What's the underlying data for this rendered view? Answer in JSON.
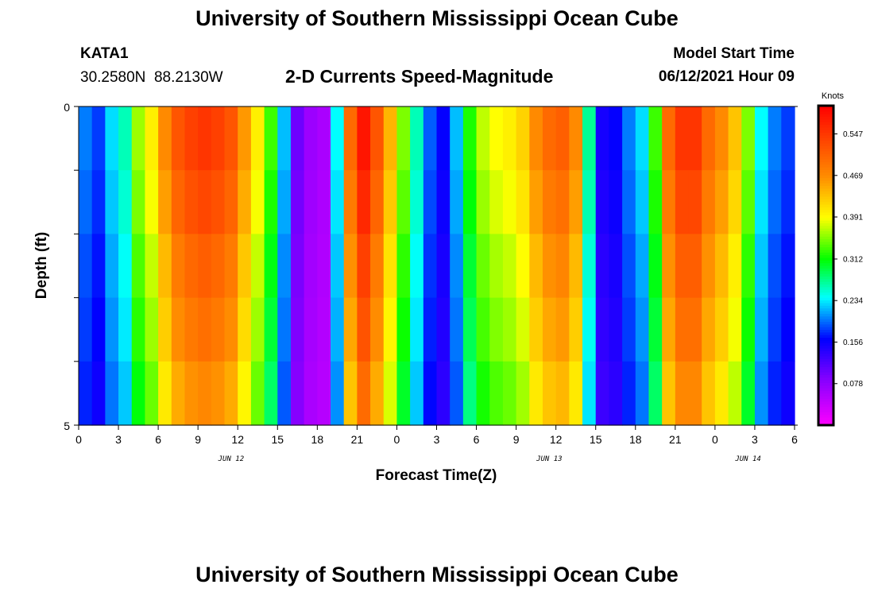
{
  "page": {
    "title": "University of Southern Mississippi Ocean Cube",
    "footer_title": "University of Southern Mississippi Ocean Cube",
    "station_id": "KATA1",
    "coords": "30.2580N  88.2130W",
    "subtitle": "2-D Currents Speed-Magnitude",
    "model_start_label": "Model Start Time",
    "model_start_value": "06/12/2021 Hour 09"
  },
  "chart_data": {
    "type": "heatmap",
    "title": "2-D Currents Speed-Magnitude",
    "xlabel": "Forecast Time(Z)",
    "ylabel": "Depth (ft)",
    "ylim": [
      0,
      5
    ],
    "y_ticks": [
      "0",
      "5"
    ],
    "x_tick_labels": [
      "0",
      "3",
      "6",
      "9",
      "12",
      "15",
      "18",
      "21",
      "0",
      "3",
      "6",
      "9",
      "12",
      "15",
      "18",
      "21",
      "0",
      "3",
      "6"
    ],
    "date_labels": [
      {
        "text": "JUN 12",
        "at_hours": 11.5
      },
      {
        "text": "JUN 13",
        "at_hours": 35.5
      },
      {
        "text": "JUN 14",
        "at_hours": 50.5
      }
    ],
    "x_range_hours": [
      0,
      54
    ],
    "depth_bins": 5,
    "colorbar": {
      "unit": "Knots",
      "range": [
        0.0,
        0.6
      ],
      "ticks": [
        "0.547",
        "0.469",
        "0.391",
        "0.312",
        "0.234",
        "0.156",
        "0.078"
      ],
      "tick_values": [
        0.547,
        0.469,
        0.391,
        0.312,
        0.234,
        0.156,
        0.078
      ]
    },
    "grid": {
      "hours": [
        0,
        1,
        2,
        3,
        4,
        5,
        6,
        7,
        8,
        9,
        10,
        11,
        12,
        13,
        14,
        15,
        16,
        17,
        18,
        19,
        20,
        21,
        22,
        23,
        24,
        25,
        26,
        27,
        28,
        29,
        30,
        31,
        32,
        33,
        34,
        35,
        36,
        37,
        38,
        39,
        40,
        41,
        42,
        43,
        44,
        45,
        46,
        47,
        48,
        49,
        50,
        51,
        52,
        53,
        54
      ],
      "profile_surface": [
        0.2,
        0.18,
        0.23,
        0.26,
        0.36,
        0.4,
        0.47,
        0.52,
        0.54,
        0.55,
        0.54,
        0.52,
        0.46,
        0.4,
        0.33,
        0.22,
        0.1,
        0.07,
        0.06,
        0.24,
        0.5,
        0.58,
        0.52,
        0.44,
        0.35,
        0.26,
        0.19,
        0.16,
        0.22,
        0.32,
        0.37,
        0.39,
        0.4,
        0.42,
        0.47,
        0.5,
        0.51,
        0.47,
        0.27,
        0.15,
        0.16,
        0.2,
        0.23,
        0.33,
        0.5,
        0.55,
        0.55,
        0.5,
        0.47,
        0.43,
        0.35,
        0.24,
        0.2,
        0.18,
        0.23
      ],
      "depth_factor": [
        1.0,
        0.97,
        0.93,
        0.9,
        0.86
      ]
    }
  }
}
